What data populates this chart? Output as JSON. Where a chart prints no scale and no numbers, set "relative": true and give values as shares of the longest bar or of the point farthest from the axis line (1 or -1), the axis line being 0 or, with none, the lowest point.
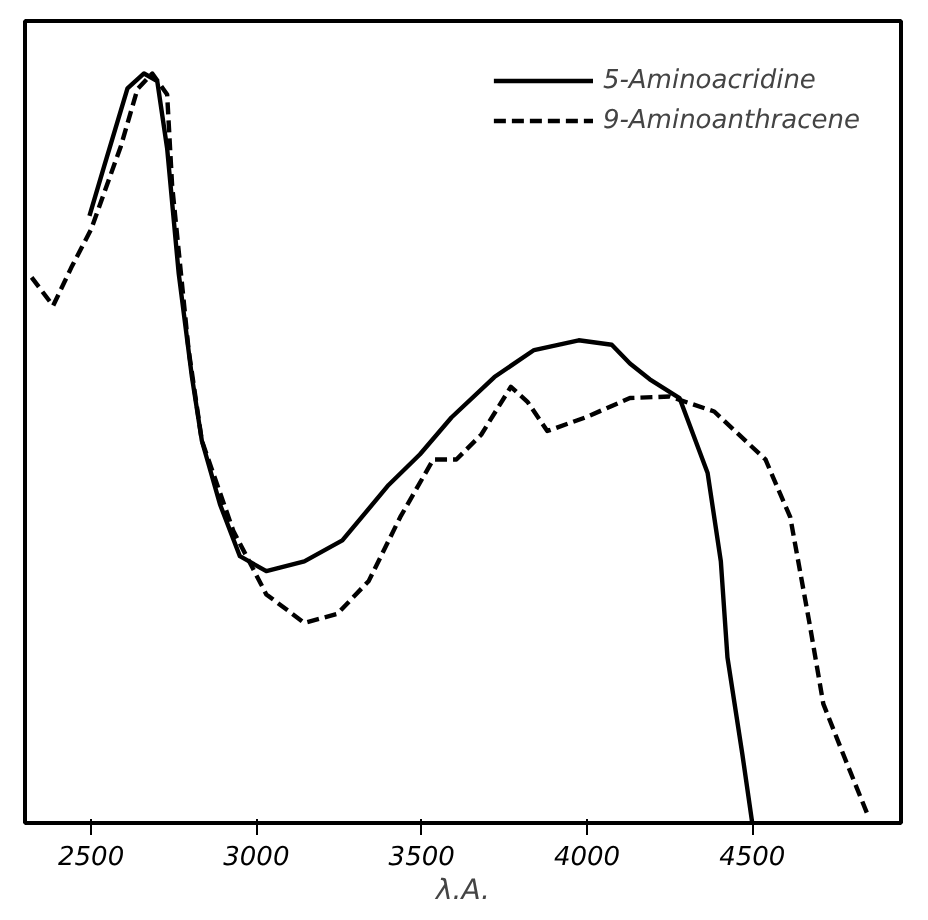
{
  "chart_data": {
    "type": "line",
    "relative": true,
    "xlabel": "λ.A.",
    "xlim": [
      2300,
      4950
    ],
    "xticks": [
      2500,
      3000,
      3500,
      4000,
      4500
    ],
    "legend": "top right",
    "grid": false,
    "series": [
      {
        "name": "5-Aminoacridine",
        "color": "#000000",
        "line_style": "solid",
        "x": [
          2495,
          2540,
          2610,
          2660,
          2700,
          2730,
          2765,
          2805,
          2835,
          2890,
          2950,
          3030,
          3145,
          3260,
          3400,
          3495,
          3590,
          3720,
          3840,
          3975,
          4075,
          4130,
          4190,
          4280,
          4365,
          4405,
          4425,
          4470,
          4500
        ],
        "values": [
          0.81,
          0.877,
          0.98,
          1.0,
          0.99,
          0.9,
          0.733,
          0.595,
          0.51,
          0.425,
          0.356,
          0.336,
          0.349,
          0.377,
          0.451,
          0.492,
          0.541,
          0.595,
          0.631,
          0.644,
          0.638,
          0.613,
          0.592,
          0.567,
          0.467,
          0.349,
          0.221,
          0.092,
          0.0
        ]
      },
      {
        "name": "9-Aminoanthracene",
        "color": "#000000",
        "line_style": "dashed",
        "x": [
          2320,
          2385,
          2440,
          2500,
          2590,
          2640,
          2685,
          2730,
          2745,
          2795,
          2835,
          2930,
          3030,
          3145,
          3245,
          3340,
          3435,
          3535,
          3605,
          3680,
          3770,
          3820,
          3880,
          3995,
          4130,
          4250,
          4385,
          4540,
          4615,
          4675,
          4715,
          4775,
          4850
        ],
        "values": [
          0.728,
          0.69,
          0.741,
          0.792,
          0.903,
          0.979,
          1.0,
          0.972,
          0.851,
          0.631,
          0.51,
          0.39,
          0.305,
          0.267,
          0.279,
          0.323,
          0.408,
          0.485,
          0.485,
          0.518,
          0.582,
          0.562,
          0.523,
          0.541,
          0.567,
          0.569,
          0.549,
          0.485,
          0.408,
          0.262,
          0.159,
          0.092,
          0.01
        ]
      }
    ]
  }
}
